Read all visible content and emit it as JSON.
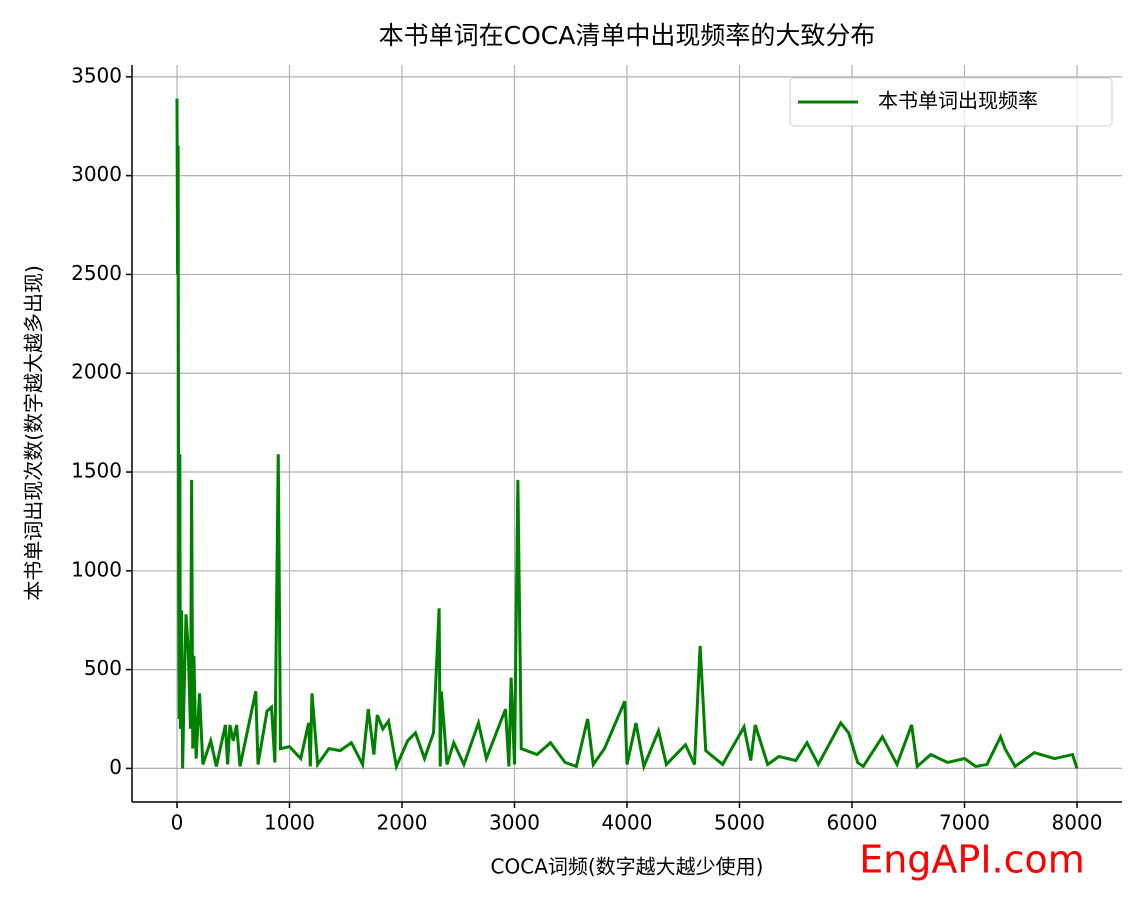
{
  "chart_data": {
    "type": "line",
    "title": "本书单词在COCA清单中出现频率的大致分布",
    "x_label": "COCA词频(数字越大越少使用)",
    "y_label": "本书单词出现次数(数字越大越多出现)",
    "watermark": "EngAPI.com",
    "watermark_color": "#ff0000",
    "xlim": [
      -400,
      8400
    ],
    "ylim": [
      -170,
      3560
    ],
    "xticks": [
      0,
      1000,
      2000,
      3000,
      4000,
      5000,
      6000,
      7000,
      8000
    ],
    "yticks": [
      0,
      500,
      1000,
      1500,
      2000,
      2500,
      3000,
      3500
    ],
    "grid": true,
    "legend": "upper right",
    "x": [
      0,
      5,
      10,
      15,
      20,
      25,
      30,
      40,
      50,
      60,
      80,
      100,
      120,
      130,
      140,
      150,
      170,
      200,
      230,
      300,
      350,
      430,
      450,
      470,
      500,
      530,
      560,
      700,
      720,
      800,
      840,
      870,
      900,
      920,
      1000,
      1100,
      1170,
      1185,
      1200,
      1250,
      1350,
      1450,
      1550,
      1650,
      1700,
      1750,
      1780,
      1830,
      1880,
      1950,
      2050,
      2120,
      2200,
      2280,
      2330,
      2340,
      2350,
      2400,
      2460,
      2550,
      2680,
      2750,
      2920,
      2950,
      2970,
      3000,
      3030,
      3060,
      3200,
      3320,
      3450,
      3550,
      3650,
      3700,
      3800,
      3980,
      4000,
      4080,
      4150,
      4280,
      4350,
      4520,
      4600,
      4650,
      4700,
      4850,
      5040,
      5100,
      5140,
      5250,
      5350,
      5500,
      5600,
      5700,
      5900,
      5970,
      6050,
      6100,
      6270,
      6400,
      6530,
      6580,
      6700,
      6850,
      7000,
      7100,
      7200,
      7320,
      7360,
      7450,
      7620,
      7800,
      7960,
      8000
    ],
    "series": [
      {
        "name": "本书单词出现频率",
        "color": "#008000",
        "values": [
          3390,
          2500,
          3150,
          900,
          250,
          1590,
          200,
          800,
          0,
          300,
          780,
          600,
          200,
          1460,
          100,
          570,
          50,
          380,
          20,
          140,
          10,
          220,
          20,
          220,
          140,
          220,
          10,
          390,
          20,
          290,
          310,
          30,
          1590,
          100,
          110,
          50,
          230,
          10,
          380,
          20,
          100,
          90,
          130,
          20,
          300,
          70,
          270,
          200,
          240,
          10,
          140,
          180,
          50,
          180,
          810,
          10,
          390,
          20,
          130,
          20,
          230,
          50,
          300,
          10,
          460,
          20,
          1460,
          100,
          70,
          130,
          30,
          10,
          250,
          20,
          100,
          340,
          20,
          230,
          10,
          190,
          20,
          120,
          20,
          620,
          90,
          20,
          210,
          40,
          220,
          20,
          60,
          40,
          130,
          20,
          230,
          180,
          30,
          10,
          160,
          20,
          220,
          10,
          70,
          30,
          50,
          10,
          20,
          160,
          100,
          10,
          80,
          50,
          70,
          0
        ]
      }
    ]
  }
}
